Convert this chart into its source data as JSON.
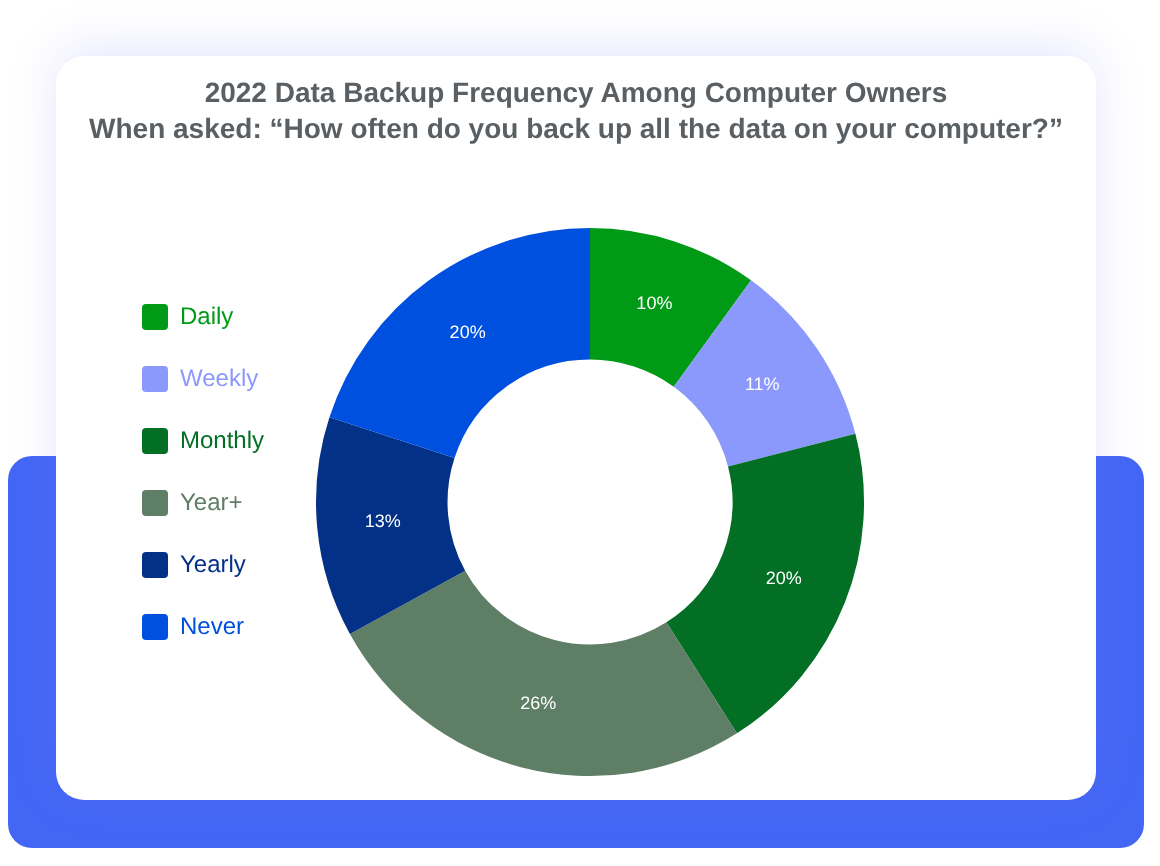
{
  "chart_data": {
    "type": "donut",
    "title": "2022 Data Backup Frequency Among Computer Owners",
    "subtitle": "When asked: “How often do you back up all the data on your computer?”",
    "categories": [
      "Daily",
      "Weekly",
      "Monthly",
      "Year+",
      "Yearly",
      "Never"
    ],
    "values": [
      10,
      11,
      20,
      26,
      13,
      20
    ],
    "colors": [
      "#009a17",
      "#8c99fc",
      "#036f24",
      "#5e7e65",
      "#033187",
      "#0050e0"
    ],
    "value_labels": [
      "10%",
      "11%",
      "20%",
      "26%",
      "13%",
      "20%"
    ],
    "legend": "left"
  }
}
